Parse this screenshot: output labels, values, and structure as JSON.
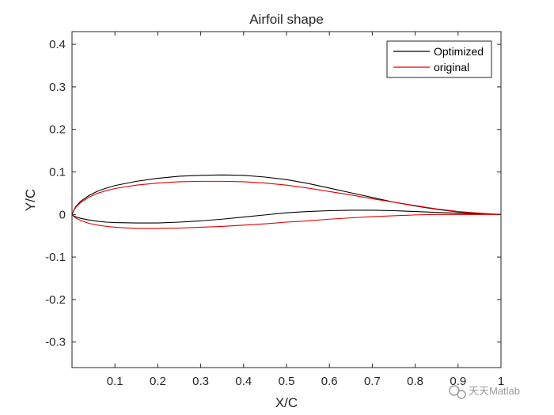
{
  "chart_data": {
    "type": "line",
    "title": "Airfoil shape",
    "xlabel": "X/C",
    "ylabel": "Y/C",
    "xlim": [
      0,
      1
    ],
    "ylim": [
      -0.36,
      0.43
    ],
    "xticks": [
      "0.1",
      "0.2",
      "0.3",
      "0.4",
      "0.5",
      "0.6",
      "0.7",
      "0.8",
      "0.9",
      "1"
    ],
    "yticks": [
      "-0.3",
      "-0.2",
      "-0.1",
      "0",
      "0.1",
      "0.2",
      "0.3",
      "0.4"
    ],
    "grid": false,
    "legend_position": "top-right",
    "series": [
      {
        "name": "Optimized",
        "color": "#000000",
        "upper": {
          "x": [
            0.0,
            0.005,
            0.01,
            0.02,
            0.04,
            0.06,
            0.08,
            0.1,
            0.15,
            0.2,
            0.25,
            0.3,
            0.35,
            0.4,
            0.45,
            0.5,
            0.55,
            0.6,
            0.65,
            0.7,
            0.75,
            0.8,
            0.85,
            0.9,
            0.95,
            1.0
          ],
          "y": [
            0.0,
            0.012,
            0.02,
            0.031,
            0.045,
            0.055,
            0.062,
            0.068,
            0.078,
            0.085,
            0.09,
            0.092,
            0.093,
            0.092,
            0.088,
            0.082,
            0.073,
            0.062,
            0.051,
            0.04,
            0.029,
            0.02,
            0.012,
            0.006,
            0.002,
            0.0
          ]
        },
        "lower": {
          "x": [
            0.0,
            0.005,
            0.01,
            0.02,
            0.04,
            0.06,
            0.08,
            0.1,
            0.15,
            0.2,
            0.25,
            0.3,
            0.35,
            0.4,
            0.45,
            0.5,
            0.55,
            0.6,
            0.65,
            0.7,
            0.75,
            0.8,
            0.85,
            0.9,
            0.95,
            1.0
          ],
          "y": [
            0.0,
            -0.004,
            -0.006,
            -0.009,
            -0.013,
            -0.016,
            -0.018,
            -0.019,
            -0.02,
            -0.02,
            -0.018,
            -0.015,
            -0.011,
            -0.006,
            -0.001,
            0.004,
            0.007,
            0.009,
            0.01,
            0.01,
            0.009,
            0.007,
            0.005,
            0.003,
            0.001,
            0.0
          ]
        }
      },
      {
        "name": "original",
        "color": "#e00000",
        "upper": {
          "x": [
            0.0,
            0.005,
            0.01,
            0.02,
            0.04,
            0.06,
            0.08,
            0.1,
            0.15,
            0.2,
            0.25,
            0.3,
            0.35,
            0.4,
            0.45,
            0.5,
            0.55,
            0.6,
            0.65,
            0.7,
            0.75,
            0.8,
            0.85,
            0.9,
            0.95,
            1.0
          ],
          "y": [
            0.0,
            0.011,
            0.018,
            0.028,
            0.041,
            0.05,
            0.056,
            0.061,
            0.069,
            0.074,
            0.077,
            0.078,
            0.078,
            0.077,
            0.074,
            0.069,
            0.062,
            0.054,
            0.046,
            0.037,
            0.029,
            0.021,
            0.013,
            0.007,
            0.003,
            0.0
          ]
        },
        "lower": {
          "x": [
            0.0,
            0.005,
            0.01,
            0.02,
            0.04,
            0.06,
            0.08,
            0.1,
            0.15,
            0.2,
            0.25,
            0.3,
            0.35,
            0.4,
            0.45,
            0.5,
            0.55,
            0.6,
            0.65,
            0.7,
            0.75,
            0.8,
            0.85,
            0.9,
            0.95,
            1.0
          ],
          "y": [
            0.0,
            -0.006,
            -0.009,
            -0.014,
            -0.021,
            -0.025,
            -0.028,
            -0.03,
            -0.033,
            -0.033,
            -0.032,
            -0.03,
            -0.028,
            -0.025,
            -0.022,
            -0.018,
            -0.015,
            -0.011,
            -0.008,
            -0.005,
            -0.003,
            -0.001,
            0.0,
            0.0,
            0.0,
            0.0
          ]
        }
      }
    ]
  },
  "watermark": {
    "icon": "wechat-icon",
    "text": "天天Matlab"
  }
}
